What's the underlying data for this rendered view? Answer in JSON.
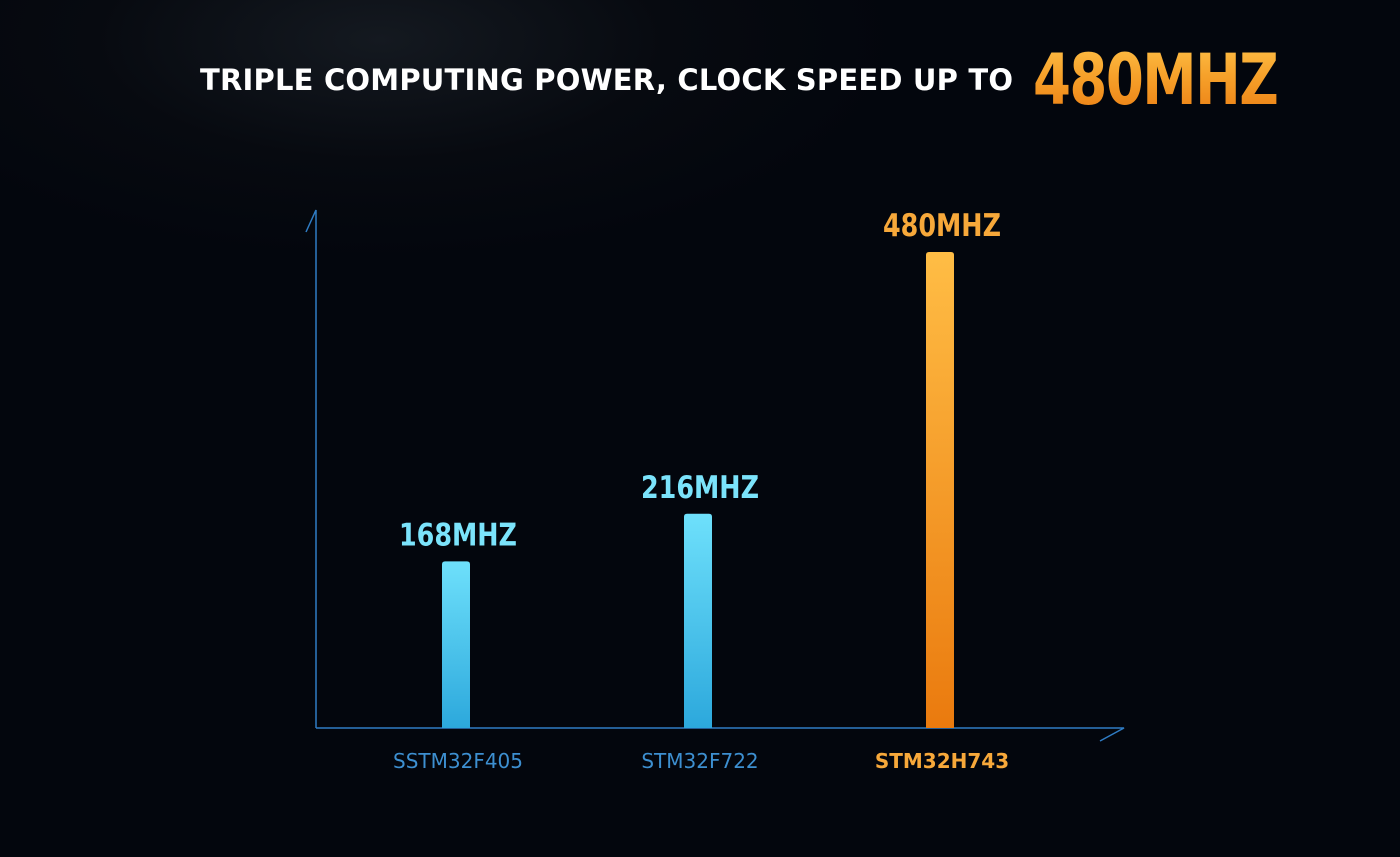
{
  "headline": {
    "text": "TRIPLE COMPUTING POWER, CLOCK SPEED UP TO",
    "accent": "480MHZ"
  },
  "colors": {
    "background": "#03060d",
    "axis": "#2f7cc4",
    "blue_bar_top": "#6ee0fb",
    "blue_bar_bottom": "#2ca8dc",
    "blue_label": "#7be3fb",
    "blue_category": "#3d8fd0",
    "orange_bar_top": "#ffbd45",
    "orange_bar_bottom": "#ea7a0e",
    "orange_label": "#f7a83a"
  },
  "chart_data": {
    "type": "bar",
    "categories": [
      "SSTM32F405",
      "STM32F722",
      "STM32H743"
    ],
    "values": [
      168,
      216,
      480
    ],
    "value_labels": [
      "168MHZ",
      "216MHZ",
      "480MHZ"
    ],
    "highlight": [
      false,
      false,
      true
    ],
    "title": "",
    "xlabel": "",
    "ylabel": "",
    "ylim": [
      0,
      480
    ],
    "grid": false
  }
}
